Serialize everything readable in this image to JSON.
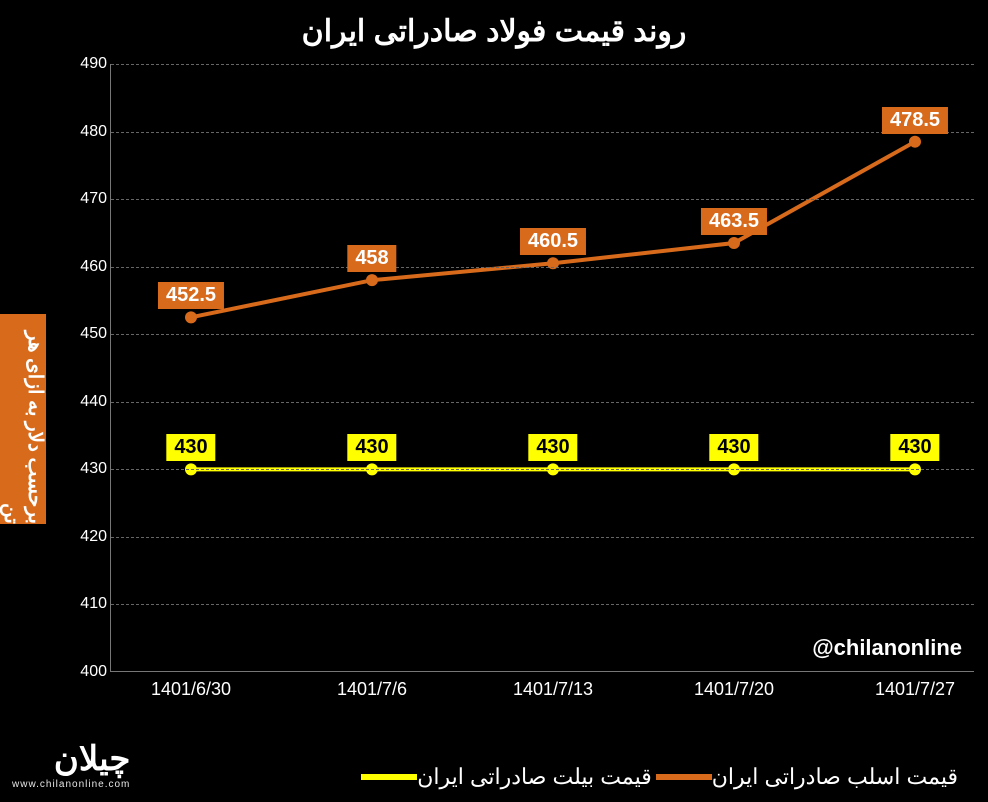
{
  "title": "روند قیمت فولاد صادراتی ایران",
  "ylabel": "برحسب دلار به ازای هر تن",
  "watermark": "@chilanonline",
  "logo_brand": "چیلان",
  "logo_url": "www.chilanonline.com",
  "chart": {
    "type": "line",
    "background_color": "#000000",
    "text_color": "#ffffff",
    "grid_color": "#666666",
    "ylabel_bg": "#d86a1c",
    "ylim": [
      400,
      490
    ],
    "ytick_step": 10,
    "yticks": [
      400,
      410,
      420,
      430,
      440,
      450,
      460,
      470,
      480,
      490
    ],
    "categories": [
      "1401/6/30",
      "1401/7/6",
      "1401/7/13",
      "1401/7/20",
      "1401/7/27"
    ],
    "series": [
      {
        "name": "قیمت اسلب صادراتی ایران",
        "color": "#d86a1c",
        "label_bg": "#d86a1c",
        "label_text_color": "#ffffff",
        "line_width": 4,
        "marker_size": 6,
        "values": [
          452.5,
          458,
          460.5,
          463.5,
          478.5
        ]
      },
      {
        "name": "قیمت بیلت صادراتی ایران",
        "color": "#ffff00",
        "label_bg": "#ffff00",
        "label_text_color": "#000000",
        "line_width": 4,
        "marker_size": 6,
        "values": [
          430,
          430,
          430,
          430,
          430
        ]
      }
    ],
    "title_fontsize": 30,
    "tick_fontsize": 16,
    "label_fontsize": 20,
    "legend_fontsize": 22
  }
}
